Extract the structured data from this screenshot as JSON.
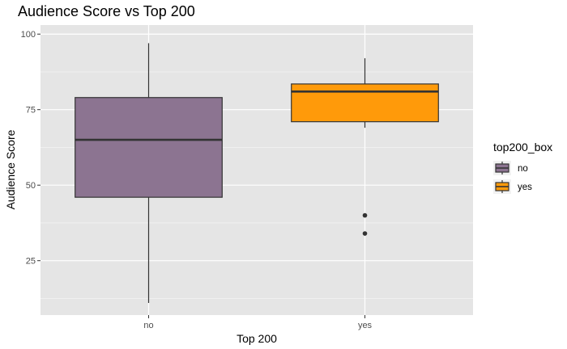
{
  "chart_data": {
    "type": "boxplot",
    "title": "Audience Score vs Top 200",
    "xlabel": "Top 200",
    "ylabel": "Audience Score",
    "ylim": [
      7,
      103
    ],
    "yticks": [
      25,
      50,
      75,
      100
    ],
    "grid": true,
    "legend": {
      "title": "top200_box",
      "placement": "right"
    },
    "series": [
      {
        "name": "no",
        "color": "#8c7491",
        "whisker_low": 11,
        "q1": 46,
        "median": 65,
        "q3": 79,
        "whisker_high": 97,
        "outliers": []
      },
      {
        "name": "yes",
        "color": "#ff9a0a",
        "whisker_low": 69,
        "q1": 71,
        "median": 81,
        "q3": 83.5,
        "whisker_high": 92,
        "outliers": [
          40,
          34
        ]
      }
    ]
  }
}
